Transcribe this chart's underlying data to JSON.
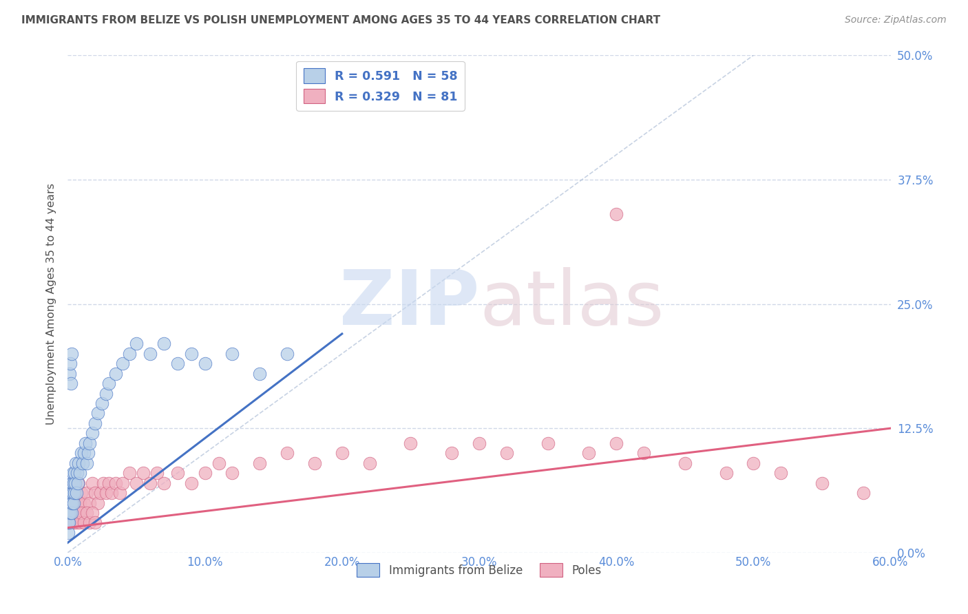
{
  "title": "IMMIGRANTS FROM BELIZE VS POLISH UNEMPLOYMENT AMONG AGES 35 TO 44 YEARS CORRELATION CHART",
  "source": "Source: ZipAtlas.com",
  "ylabel": "Unemployment Among Ages 35 to 44 years",
  "xlim": [
    0.0,
    0.6
  ],
  "ylim": [
    0.0,
    0.5
  ],
  "yticks": [
    0.0,
    0.125,
    0.25,
    0.375,
    0.5
  ],
  "ytick_labels_right": [
    "0.0%",
    "12.5%",
    "25.0%",
    "37.5%",
    "50.0%"
  ],
  "xticks": [
    0.0,
    0.1,
    0.2,
    0.3,
    0.4,
    0.5,
    0.6
  ],
  "xtick_labels": [
    "0.0%",
    "10.0%",
    "20.0%",
    "30.0%",
    "40.0%",
    "50.0%",
    "60.0%"
  ],
  "legend_R_blue": "0.591",
  "legend_N_blue": "58",
  "legend_R_pink": "0.329",
  "legend_N_pink": "81",
  "blue_fill": "#b8d0e8",
  "blue_edge": "#4472c4",
  "blue_line": "#4472c4",
  "pink_fill": "#f0b0c0",
  "pink_edge": "#d06080",
  "pink_line": "#e06080",
  "grid_color": "#d0d8e8",
  "title_color": "#505050",
  "tick_color": "#5b8dd9",
  "ref_line_color": "#b0c0d8",
  "watermark_zip_color": "#c8d8f0",
  "watermark_atlas_color": "#e0c8d0",
  "blue_scatter_x": [
    0.0002,
    0.0003,
    0.0005,
    0.0006,
    0.0008,
    0.001,
    0.0012,
    0.0015,
    0.0018,
    0.002,
    0.0022,
    0.0025,
    0.0028,
    0.003,
    0.0032,
    0.0035,
    0.0038,
    0.004,
    0.0042,
    0.0045,
    0.0048,
    0.005,
    0.0055,
    0.006,
    0.0065,
    0.007,
    0.0075,
    0.008,
    0.009,
    0.01,
    0.011,
    0.012,
    0.013,
    0.014,
    0.015,
    0.016,
    0.018,
    0.02,
    0.022,
    0.025,
    0.028,
    0.03,
    0.035,
    0.04,
    0.045,
    0.05,
    0.06,
    0.07,
    0.08,
    0.09,
    0.1,
    0.12,
    0.14,
    0.16,
    0.0015,
    0.002,
    0.0025,
    0.003
  ],
  "blue_scatter_y": [
    0.02,
    0.04,
    0.03,
    0.05,
    0.04,
    0.03,
    0.06,
    0.05,
    0.04,
    0.06,
    0.05,
    0.07,
    0.04,
    0.06,
    0.05,
    0.07,
    0.06,
    0.08,
    0.05,
    0.07,
    0.06,
    0.08,
    0.07,
    0.09,
    0.06,
    0.08,
    0.07,
    0.09,
    0.08,
    0.1,
    0.09,
    0.1,
    0.11,
    0.09,
    0.1,
    0.11,
    0.12,
    0.13,
    0.14,
    0.15,
    0.16,
    0.17,
    0.18,
    0.19,
    0.2,
    0.21,
    0.2,
    0.21,
    0.19,
    0.2,
    0.19,
    0.2,
    0.18,
    0.2,
    0.18,
    0.19,
    0.17,
    0.2
  ],
  "pink_scatter_x": [
    0.0005,
    0.0008,
    0.001,
    0.0012,
    0.0015,
    0.0018,
    0.002,
    0.0025,
    0.0028,
    0.003,
    0.0035,
    0.004,
    0.0045,
    0.005,
    0.006,
    0.007,
    0.008,
    0.009,
    0.01,
    0.012,
    0.014,
    0.016,
    0.018,
    0.02,
    0.022,
    0.024,
    0.026,
    0.028,
    0.03,
    0.032,
    0.035,
    0.038,
    0.04,
    0.045,
    0.05,
    0.055,
    0.06,
    0.065,
    0.07,
    0.08,
    0.09,
    0.1,
    0.11,
    0.12,
    0.14,
    0.16,
    0.18,
    0.2,
    0.22,
    0.25,
    0.28,
    0.3,
    0.32,
    0.35,
    0.38,
    0.4,
    0.42,
    0.45,
    0.48,
    0.5,
    0.52,
    0.55,
    0.58,
    0.0015,
    0.002,
    0.0025,
    0.003,
    0.0035,
    0.004,
    0.005,
    0.006,
    0.007,
    0.008,
    0.009,
    0.01,
    0.012,
    0.014,
    0.016,
    0.018,
    0.02,
    0.4
  ],
  "pink_scatter_y": [
    0.03,
    0.04,
    0.03,
    0.05,
    0.04,
    0.05,
    0.04,
    0.05,
    0.04,
    0.06,
    0.05,
    0.04,
    0.06,
    0.05,
    0.06,
    0.05,
    0.07,
    0.05,
    0.06,
    0.05,
    0.06,
    0.05,
    0.07,
    0.06,
    0.05,
    0.06,
    0.07,
    0.06,
    0.07,
    0.06,
    0.07,
    0.06,
    0.07,
    0.08,
    0.07,
    0.08,
    0.07,
    0.08,
    0.07,
    0.08,
    0.07,
    0.08,
    0.09,
    0.08,
    0.09,
    0.1,
    0.09,
    0.1,
    0.09,
    0.11,
    0.1,
    0.11,
    0.1,
    0.11,
    0.1,
    0.11,
    0.1,
    0.09,
    0.08,
    0.09,
    0.08,
    0.07,
    0.06,
    0.03,
    0.04,
    0.03,
    0.04,
    0.03,
    0.04,
    0.03,
    0.04,
    0.03,
    0.04,
    0.03,
    0.04,
    0.03,
    0.04,
    0.03,
    0.04,
    0.03,
    0.34
  ],
  "blue_trend_x": [
    0.0,
    0.2
  ],
  "blue_trend_y": [
    0.01,
    0.22
  ],
  "pink_trend_x": [
    0.0,
    0.6
  ],
  "pink_trend_y": [
    0.025,
    0.125
  ],
  "ref_line_x": [
    0.0,
    0.5
  ],
  "ref_line_y": [
    0.0,
    0.5
  ]
}
